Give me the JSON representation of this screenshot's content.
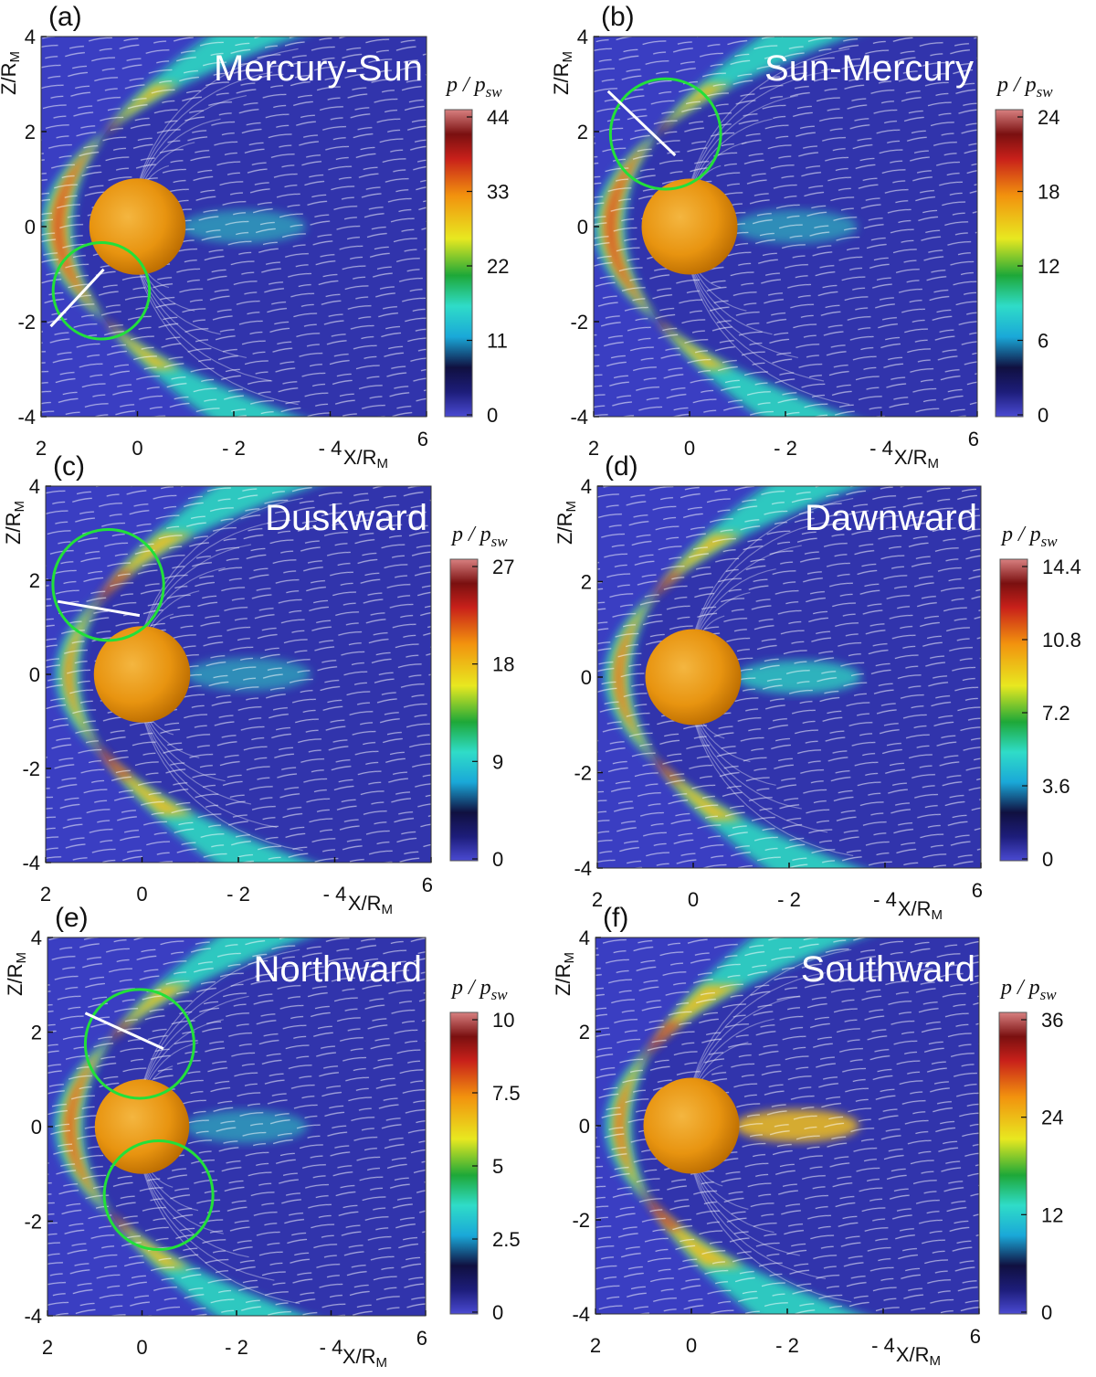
{
  "chart_data": [
    {
      "type": "heatmap",
      "label": "(a)",
      "title": "Mercury-Sun",
      "xlabel": "X/R",
      "xlabel_sub": "M",
      "ylabel": "Z/R",
      "ylabel_sub": "M",
      "xlim": [
        2,
        -6
      ],
      "ylim": [
        -4,
        4
      ],
      "xticks": [
        "2",
        "0",
        "- 2",
        "- 4",
        "6"
      ],
      "yticks": [
        "-4",
        "-2",
        "0",
        "2",
        "4"
      ],
      "colorbar": {
        "label": "p / p",
        "label_sub": "sw",
        "ticks": [
          "0",
          "11",
          "22",
          "33",
          "44"
        ],
        "min": 0,
        "max": 44
      },
      "circles": [
        {
          "x": 0.75,
          "z": -1.35,
          "r": 1.0
        }
      ],
      "cut_line": [
        [
          1.8,
          -2.1
        ],
        [
          0.7,
          -0.9
        ]
      ],
      "magnetopause": {
        "standoff": 1.35,
        "flare": 0.5
      },
      "bow_shock": {
        "standoff": 2.0,
        "flare": 0.95
      }
    },
    {
      "type": "heatmap",
      "label": "(b)",
      "title": "Sun-Mercury",
      "xlabel": "X/R",
      "xlabel_sub": "M",
      "ylabel": "Z/R",
      "ylabel_sub": "M",
      "xlim": [
        2,
        -6
      ],
      "ylim": [
        -4,
        4
      ],
      "xticks": [
        "2",
        "0",
        "- 2",
        "- 4",
        "6"
      ],
      "yticks": [
        "-4",
        "-2",
        "0",
        "2",
        "4"
      ],
      "colorbar": {
        "label": "p / p",
        "label_sub": "sw",
        "ticks": [
          "0",
          "6",
          "12",
          "18",
          "24"
        ],
        "min": 0,
        "max": 24
      },
      "circles": [
        {
          "x": 0.5,
          "z": 1.95,
          "r": 1.15
        }
      ],
      "cut_line": [
        [
          1.7,
          2.85
        ],
        [
          0.3,
          1.5
        ]
      ],
      "magnetopause": {
        "standoff": 1.35,
        "flare": 0.5
      },
      "bow_shock": {
        "standoff": 2.0,
        "flare": 0.95
      }
    },
    {
      "type": "heatmap",
      "label": "(c)",
      "title": "Duskward",
      "xlabel": "X/R",
      "xlabel_sub": "M",
      "ylabel": "Z/R",
      "ylabel_sub": "M",
      "xlim": [
        2,
        -6
      ],
      "ylim": [
        -4,
        4
      ],
      "xticks": [
        "2",
        "0",
        "- 2",
        "- 4",
        "6"
      ],
      "yticks": [
        "-4",
        "-2",
        "0",
        "2",
        "4"
      ],
      "colorbar": {
        "label": "p / p",
        "label_sub": "sw",
        "ticks": [
          "0",
          "9",
          "18",
          "27"
        ],
        "min": 0,
        "max": 27
      },
      "circles": [
        {
          "x": 0.7,
          "z": 1.9,
          "r": 1.15
        }
      ],
      "cut_line": [
        [
          1.75,
          1.55
        ],
        [
          0.05,
          1.25
        ]
      ],
      "magnetopause": {
        "standoff": 1.3,
        "flare": 0.5
      },
      "bow_shock": {
        "standoff": 1.8,
        "flare": 0.95
      }
    },
    {
      "type": "heatmap",
      "label": "(d)",
      "title": "Dawnward",
      "xlabel": "X/R",
      "xlabel_sub": "M",
      "ylabel": "Z/R",
      "ylabel_sub": "M",
      "xlim": [
        2,
        -6
      ],
      "ylim": [
        -4,
        4
      ],
      "xticks": [
        "2",
        "0",
        "- 2",
        "- 4",
        "6"
      ],
      "yticks": [
        "-4",
        "-2",
        "0",
        "2",
        "4"
      ],
      "colorbar": {
        "label": "p / p",
        "label_sub": "sw",
        "ticks": [
          "0",
          "3.6",
          "7.2",
          "10.8",
          "14.4"
        ],
        "min": 0,
        "max": 14.4
      },
      "circles": [],
      "cut_line": null,
      "magnetopause": {
        "standoff": 1.3,
        "flare": 0.5
      },
      "bow_shock": {
        "standoff": 1.85,
        "flare": 0.95
      }
    },
    {
      "type": "heatmap",
      "label": "(e)",
      "title": "Northward",
      "xlabel": "X/R",
      "xlabel_sub": "M",
      "ylabel": "Z/R",
      "ylabel_sub": "M",
      "xlim": [
        2,
        -6
      ],
      "ylim": [
        -4,
        4
      ],
      "xticks": [
        "2",
        "0",
        "- 2",
        "- 4",
        "6"
      ],
      "yticks": [
        "-4",
        "-2",
        "0",
        "2",
        "4"
      ],
      "colorbar": {
        "label": "p / p",
        "label_sub": "sw",
        "ticks": [
          "0",
          "2.5",
          "5",
          "7.5",
          "10"
        ],
        "min": 0,
        "max": 10
      },
      "circles": [
        {
          "x": 0.05,
          "z": 1.75,
          "r": 1.15
        },
        {
          "x": -0.35,
          "z": -1.45,
          "r": 1.15
        }
      ],
      "cut_line": [
        [
          1.2,
          2.4
        ],
        [
          -0.45,
          1.65
        ]
      ],
      "magnetopause": {
        "standoff": 1.25,
        "flare": 0.5
      },
      "bow_shock": {
        "standoff": 1.85,
        "flare": 0.95
      }
    },
    {
      "type": "heatmap",
      "label": "(f)",
      "title": "Southward",
      "xlabel": "X/R",
      "xlabel_sub": "M",
      "ylabel": "Z/R",
      "ylabel_sub": "M",
      "xlim": [
        2,
        -6
      ],
      "ylim": [
        -4,
        4
      ],
      "xticks": [
        "2",
        "0",
        "- 2",
        "- 4",
        "6"
      ],
      "yticks": [
        "-4",
        "-2",
        "0",
        "2",
        "4"
      ],
      "colorbar": {
        "label": "p / p",
        "label_sub": "sw",
        "ticks": [
          "0",
          "12",
          "24",
          "36"
        ],
        "min": 0,
        "max": 36
      },
      "circles": [],
      "cut_line": null,
      "magnetopause": {
        "standoff": 1.25,
        "flare": 0.45
      },
      "bow_shock": {
        "standoff": 1.8,
        "flare": 0.95
      }
    }
  ],
  "colors": {
    "background": "#3a3ec2",
    "low": "#1a1c6e",
    "sheath_inner": "#2fc8c0",
    "sheath_mid": "#f2c01a",
    "sheath_high": "#d2402a",
    "planet": "#e6920f",
    "circle": "#22e03a",
    "line": "#ffffff"
  }
}
